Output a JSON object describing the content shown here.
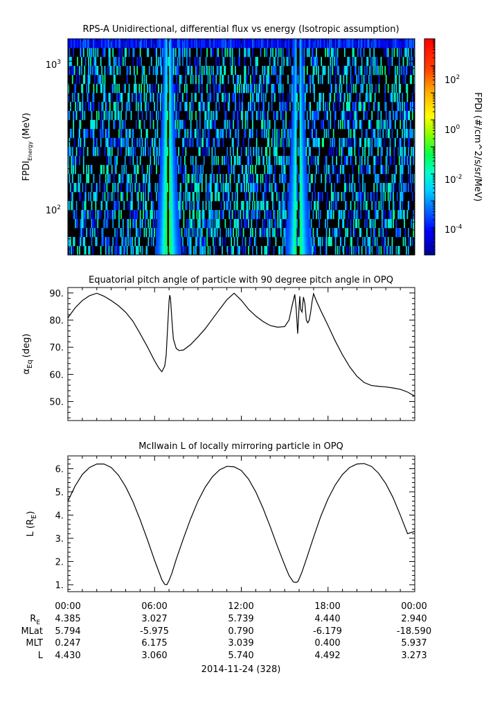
{
  "chart_data": [
    {
      "type": "heatmap",
      "title": "RPS-A Unidirectional, differential flux vs energy (Isotropic assumption)",
      "ylabel": "FPDI",
      "ylabel_sub": "Energy",
      "ylabel_unit": "(MeV)",
      "yscale": "log",
      "ylim": [
        55,
        1400
      ],
      "yticks": [
        {
          "value": 100,
          "base": "10",
          "exp": "2"
        },
        {
          "value": 1000,
          "base": "10",
          "exp": "3"
        }
      ],
      "colorbar": {
        "label": "FPDI (#/cm^2/s/sr/MeV)",
        "scale": "log",
        "zlim": [
          1e-05,
          1000.0
        ],
        "ticks": [
          {
            "base": "10",
            "exp": "2",
            "value": 100
          },
          {
            "base": "10",
            "exp": "0",
            "value": 1
          },
          {
            "base": "10",
            "exp": "-2",
            "value": 0.01
          },
          {
            "base": "10",
            "exp": "-4",
            "value": 0.0001
          }
        ]
      },
      "features": [
        {
          "description": "enhanced flux band",
          "center_hour": 6.9,
          "peak_flux": 1.0
        },
        {
          "description": "enhanced flux band",
          "center_hour": 15.9,
          "peak_flux": 1.0
        }
      ]
    },
    {
      "type": "line",
      "title": "Equatorial pitch angle of particle with 90 degree pitch angle in OPQ",
      "ylabel_main": "α",
      "ylabel_sub": "Eq",
      "ylabel_unit": "(deg)",
      "ylim": [
        43,
        92
      ],
      "yticks": [
        "50.",
        "60.",
        "70.",
        "80.",
        "90."
      ],
      "x": [
        0,
        0.5,
        1,
        1.5,
        2,
        2.5,
        3,
        3.5,
        4,
        4.5,
        5,
        5.5,
        6,
        6.3,
        6.5,
        6.7,
        6.8,
        6.9,
        7.0,
        7.05,
        7.1,
        7.2,
        7.3,
        7.5,
        7.7,
        8,
        8.5,
        9,
        9.5,
        10,
        10.5,
        11,
        11.5,
        12,
        12.5,
        13,
        13.5,
        14,
        14.5,
        15,
        15.3,
        15.5,
        15.7,
        15.8,
        15.9,
        16.0,
        16.05,
        16.1,
        16.2,
        16.3,
        16.4,
        16.5,
        16.6,
        16.7,
        16.8,
        16.9,
        17.0,
        17.2,
        17.5,
        18,
        18.5,
        19,
        19.5,
        20,
        20.5,
        21,
        21.5,
        22,
        22.5,
        23,
        23.5,
        24
      ],
      "y": [
        80.8,
        84.5,
        87.2,
        89.0,
        89.9,
        88.8,
        87.2,
        85.3,
        82.9,
        79.6,
        75.0,
        70.2,
        65.0,
        62.3,
        61.0,
        63.0,
        67.0,
        77.0,
        87.0,
        89.2,
        88.0,
        80.0,
        73.0,
        69.5,
        68.8,
        69.0,
        71.0,
        73.8,
        76.8,
        80.4,
        84.0,
        87.5,
        89.9,
        87.3,
        84.0,
        81.5,
        79.5,
        78.0,
        77.4,
        77.6,
        80.0,
        85.0,
        89.5,
        84.0,
        75.0,
        85.0,
        88.8,
        84.0,
        83.0,
        88.5,
        86.0,
        80.0,
        79.0,
        80.0,
        83.0,
        87.0,
        89.7,
        87.0,
        83.5,
        78.0,
        72.3,
        67.2,
        62.8,
        59.3,
        57.0,
        55.9,
        55.6,
        55.4,
        55.0,
        54.5,
        53.5,
        52.0
      ]
    },
    {
      "type": "line",
      "title": "McIlwain L of locally mirroring particle in OPQ",
      "ylabel_main": "L (R",
      "ylabel_sub": "E",
      "ylabel_close": ")",
      "ylim": [
        0.7,
        6.55
      ],
      "yticks": [
        "1.",
        "2.",
        "3.",
        "4.",
        "5.",
        "6."
      ],
      "x": [
        0,
        0.5,
        1,
        1.5,
        2,
        2.5,
        3,
        3.5,
        4,
        4.5,
        5,
        5.5,
        6,
        6.3,
        6.5,
        6.7,
        6.85,
        7.0,
        7.2,
        7.5,
        8,
        8.5,
        9,
        9.5,
        10,
        10.5,
        11,
        11.5,
        12,
        12.5,
        13,
        13.5,
        14,
        14.5,
        15,
        15.3,
        15.6,
        15.8,
        15.9,
        16.0,
        16.2,
        16.5,
        17,
        17.5,
        18,
        18.5,
        19,
        19.5,
        20,
        20.5,
        21,
        21.5,
        22,
        22.5,
        23,
        23.5,
        24
      ],
      "y": [
        4.6,
        5.25,
        5.75,
        6.05,
        6.2,
        6.2,
        6.05,
        5.72,
        5.22,
        4.58,
        3.8,
        2.95,
        2.05,
        1.55,
        1.22,
        1.02,
        1.0,
        1.18,
        1.5,
        2.1,
        3.0,
        3.85,
        4.6,
        5.2,
        5.65,
        5.95,
        6.1,
        6.08,
        5.92,
        5.55,
        5.0,
        4.3,
        3.5,
        2.65,
        1.85,
        1.4,
        1.12,
        1.1,
        1.13,
        1.25,
        1.55,
        2.1,
        3.05,
        3.95,
        4.7,
        5.3,
        5.75,
        6.05,
        6.2,
        6.22,
        6.1,
        5.8,
        5.35,
        4.75,
        4.0,
        3.2,
        3.3
      ]
    }
  ],
  "xaxis": {
    "xlim": [
      0,
      24
    ],
    "tick_labels": [
      "00:00",
      "06:00",
      "12:00",
      "18:00",
      "00:00"
    ],
    "date_label": "2014-11-24 (328)"
  },
  "ephemeris": {
    "rows": [
      {
        "label": "R",
        "sub": "E",
        "values": [
          "4.385",
          "3.027",
          "5.739",
          "4.440",
          "2.940"
        ]
      },
      {
        "label": "MLat",
        "sub": "",
        "values": [
          "5.794",
          "-5.975",
          "0.790",
          "-6.179",
          "-18.590"
        ]
      },
      {
        "label": "MLT",
        "sub": "",
        "values": [
          "0.247",
          "6.175",
          "3.039",
          "0.400",
          "5.937"
        ]
      },
      {
        "label": "L",
        "sub": "",
        "values": [
          "4.430",
          "3.060",
          "5.740",
          "4.492",
          "3.273"
        ]
      }
    ]
  },
  "colors": {
    "line": "#000000",
    "axis": "#000000",
    "background": "#ffffff",
    "spectrogram_empty": "#000000"
  }
}
